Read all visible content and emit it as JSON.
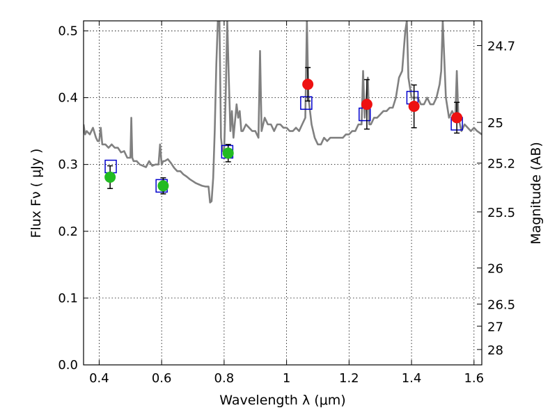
{
  "chart_data": {
    "type": "scatter",
    "title": "",
    "xlabel": "Wavelength  λ (μm)",
    "ylabel": "Flux  Fν  ( μJy )",
    "ylabel_right": "Magnitude (AB)",
    "xlim": [
      0.35,
      1.625
    ],
    "ylim": [
      0.0,
      0.515
    ],
    "grid": true,
    "x_ticks": [
      0.4,
      0.6,
      0.8,
      1.0,
      1.2,
      1.4,
      1.6
    ],
    "x_tick_labels": [
      "0.4",
      "0.6",
      "0.8",
      "1",
      "1.2",
      "1.4",
      "1.6"
    ],
    "y_ticks": [
      0.0,
      0.1,
      0.2,
      0.3,
      0.4,
      0.5
    ],
    "y_tick_labels": [
      "0.0",
      "0.1",
      "0.2",
      "0.3",
      "0.4",
      "0.5"
    ],
    "right_ticks": [
      {
        "label": "24.7",
        "flux": 0.478
      },
      {
        "label": "25",
        "flux": 0.363
      },
      {
        "label": "25.2",
        "flux": 0.302
      },
      {
        "label": "25.5",
        "flux": 0.229
      },
      {
        "label": "26",
        "flux": 0.145
      },
      {
        "label": "26.5",
        "flux": 0.091
      },
      {
        "label": "27",
        "flux": 0.058
      },
      {
        "label": "28",
        "flux": 0.023
      }
    ],
    "model_spectrum": {
      "color": "#808080",
      "x": [
        0.35,
        0.355,
        0.36,
        0.37,
        0.38,
        0.39,
        0.395,
        0.4,
        0.405,
        0.41,
        0.42,
        0.43,
        0.44,
        0.45,
        0.46,
        0.47,
        0.48,
        0.49,
        0.5,
        0.5,
        0.503,
        0.506,
        0.51,
        0.52,
        0.53,
        0.54,
        0.55,
        0.56,
        0.57,
        0.58,
        0.59,
        0.595,
        0.6,
        0.605,
        0.61,
        0.62,
        0.63,
        0.64,
        0.65,
        0.66,
        0.67,
        0.68,
        0.69,
        0.7,
        0.71,
        0.72,
        0.73,
        0.74,
        0.75,
        0.755,
        0.76,
        0.765,
        0.77,
        0.775,
        0.78,
        0.785,
        0.79,
        0.795,
        0.8,
        0.805,
        0.81,
        0.815,
        0.82,
        0.825,
        0.83,
        0.84,
        0.845,
        0.85,
        0.855,
        0.86,
        0.87,
        0.88,
        0.89,
        0.9,
        0.91,
        0.915,
        0.92,
        0.93,
        0.94,
        0.95,
        0.96,
        0.97,
        0.98,
        0.99,
        1.0,
        1.01,
        1.02,
        1.03,
        1.04,
        1.05,
        1.06,
        1.065,
        1.07,
        1.08,
        1.09,
        1.1,
        1.11,
        1.12,
        1.13,
        1.14,
        1.15,
        1.16,
        1.17,
        1.18,
        1.19,
        1.2,
        1.21,
        1.22,
        1.23,
        1.24,
        1.245,
        1.25,
        1.26,
        1.265,
        1.27,
        1.28,
        1.29,
        1.3,
        1.31,
        1.32,
        1.33,
        1.34,
        1.35,
        1.36,
        1.37,
        1.38,
        1.385,
        1.39,
        1.4,
        1.41,
        1.42,
        1.43,
        1.44,
        1.45,
        1.46,
        1.47,
        1.48,
        1.49,
        1.495,
        1.5,
        1.51,
        1.52,
        1.53,
        1.54,
        1.545,
        1.55,
        1.56,
        1.57,
        1.58,
        1.59,
        1.6,
        1.61,
        1.625
      ],
      "y": [
        0.36,
        0.345,
        0.35,
        0.345,
        0.355,
        0.34,
        0.335,
        0.335,
        0.355,
        0.33,
        0.33,
        0.325,
        0.33,
        0.325,
        0.325,
        0.318,
        0.32,
        0.31,
        0.31,
        0.31,
        0.37,
        0.31,
        0.305,
        0.305,
        0.3,
        0.298,
        0.296,
        0.305,
        0.298,
        0.3,
        0.3,
        0.33,
        0.3,
        0.305,
        0.305,
        0.308,
        0.302,
        0.295,
        0.29,
        0.29,
        0.285,
        0.282,
        0.278,
        0.275,
        0.272,
        0.27,
        0.268,
        0.267,
        0.267,
        0.243,
        0.245,
        0.28,
        0.35,
        0.45,
        0.515,
        0.515,
        0.34,
        0.32,
        0.32,
        0.4,
        0.515,
        0.43,
        0.35,
        0.38,
        0.34,
        0.39,
        0.37,
        0.38,
        0.35,
        0.35,
        0.36,
        0.355,
        0.35,
        0.35,
        0.34,
        0.47,
        0.35,
        0.37,
        0.36,
        0.36,
        0.35,
        0.36,
        0.36,
        0.355,
        0.355,
        0.35,
        0.35,
        0.355,
        0.35,
        0.36,
        0.37,
        0.515,
        0.4,
        0.36,
        0.34,
        0.33,
        0.33,
        0.34,
        0.335,
        0.34,
        0.34,
        0.34,
        0.34,
        0.34,
        0.345,
        0.345,
        0.35,
        0.35,
        0.36,
        0.36,
        0.44,
        0.37,
        0.43,
        0.36,
        0.36,
        0.37,
        0.37,
        0.375,
        0.38,
        0.38,
        0.385,
        0.385,
        0.4,
        0.43,
        0.44,
        0.5,
        0.515,
        0.43,
        0.4,
        0.4,
        0.4,
        0.39,
        0.39,
        0.4,
        0.39,
        0.39,
        0.4,
        0.42,
        0.44,
        0.515,
        0.4,
        0.37,
        0.38,
        0.37,
        0.44,
        0.37,
        0.35,
        0.36,
        0.355,
        0.35,
        0.355,
        0.35,
        0.345
      ]
    },
    "series": [
      {
        "marker": "circle",
        "color": "#22bb22",
        "x": [
          0.435,
          0.605,
          0.813
        ],
        "y": [
          0.281,
          0.268,
          0.317
        ],
        "yerr": [
          0.017,
          0.012,
          0.013
        ]
      },
      {
        "marker": "circle",
        "color": "#ee1111",
        "x": [
          1.068,
          1.257,
          1.408,
          1.545
        ],
        "y": [
          0.42,
          0.39,
          0.387,
          0.37
        ],
        "yerr": [
          0.025,
          0.037,
          0.032,
          0.023
        ]
      },
      {
        "marker": "square-open",
        "color": "#0000cc",
        "x": [
          0.437,
          0.6,
          0.81,
          1.063,
          1.25,
          1.403,
          1.545
        ],
        "y": [
          0.297,
          0.268,
          0.319,
          0.392,
          0.375,
          0.4,
          0.361
        ]
      }
    ]
  }
}
